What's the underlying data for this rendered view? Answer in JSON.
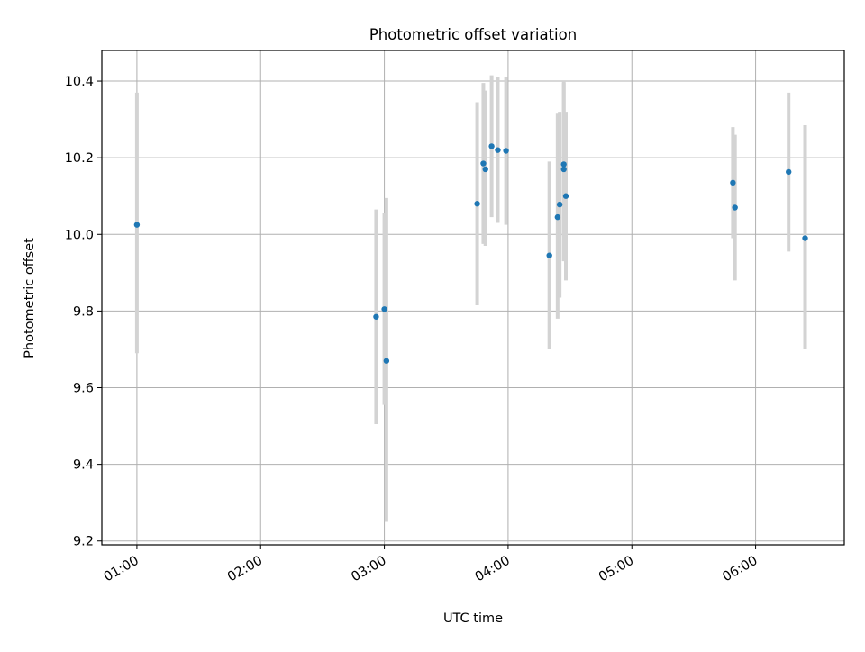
{
  "chart_data": {
    "type": "scatter",
    "title": "Photometric offset variation",
    "xlabel": "UTC time",
    "ylabel": "Photometric offset",
    "x_ticks": [
      "01:00",
      "02:00",
      "03:00",
      "04:00",
      "05:00",
      "06:00"
    ],
    "y_ticks": [
      "9.2",
      "9.4",
      "9.6",
      "9.8",
      "10.0",
      "10.2",
      "10.4"
    ],
    "xlim": [
      "00:43",
      "06:43"
    ],
    "ylim": [
      9.19,
      10.48
    ],
    "grid": true,
    "colors": {
      "point": "#1f77b4",
      "errorbar": "#d3d3d3",
      "grid": "#b0b0b0"
    },
    "series": [
      {
        "points": [
          {
            "x": "01:00",
            "y": 10.025,
            "ylo": 9.69,
            "yhi": 10.37
          },
          {
            "x": "02:56",
            "y": 9.785,
            "ylo": 9.505,
            "yhi": 10.065
          },
          {
            "x": "03:00",
            "y": 9.805,
            "ylo": 9.555,
            "yhi": 10.055
          },
          {
            "x": "03:01",
            "y": 9.67,
            "ylo": 9.25,
            "yhi": 10.095
          },
          {
            "x": "03:45",
            "y": 10.08,
            "ylo": 9.815,
            "yhi": 10.345
          },
          {
            "x": "03:48",
            "y": 10.185,
            "ylo": 9.975,
            "yhi": 10.395
          },
          {
            "x": "03:49",
            "y": 10.17,
            "ylo": 9.97,
            "yhi": 10.375
          },
          {
            "x": "03:52",
            "y": 10.23,
            "ylo": 10.045,
            "yhi": 10.415
          },
          {
            "x": "03:55",
            "y": 10.22,
            "ylo": 10.03,
            "yhi": 10.41
          },
          {
            "x": "03:59",
            "y": 10.218,
            "ylo": 10.025,
            "yhi": 10.41
          },
          {
            "x": "04:20",
            "y": 9.945,
            "ylo": 9.7,
            "yhi": 10.19
          },
          {
            "x": "04:24",
            "y": 10.045,
            "ylo": 9.78,
            "yhi": 10.315
          },
          {
            "x": "04:25",
            "y": 10.078,
            "ylo": 9.835,
            "yhi": 10.32
          },
          {
            "x": "04:27",
            "y": 10.17,
            "ylo": 9.93,
            "yhi": 10.395
          },
          {
            "x": "04:27",
            "y": 10.183,
            "ylo": 9.995,
            "yhi": 10.4
          },
          {
            "x": "04:28",
            "y": 10.1,
            "ylo": 9.88,
            "yhi": 10.32
          },
          {
            "x": "05:49",
            "y": 10.135,
            "ylo": 9.99,
            "yhi": 10.28
          },
          {
            "x": "05:50",
            "y": 10.07,
            "ylo": 9.88,
            "yhi": 10.26
          },
          {
            "x": "06:16",
            "y": 10.163,
            "ylo": 9.955,
            "yhi": 10.37
          },
          {
            "x": "06:24",
            "y": 9.99,
            "ylo": 9.7,
            "yhi": 10.285
          }
        ]
      }
    ]
  }
}
